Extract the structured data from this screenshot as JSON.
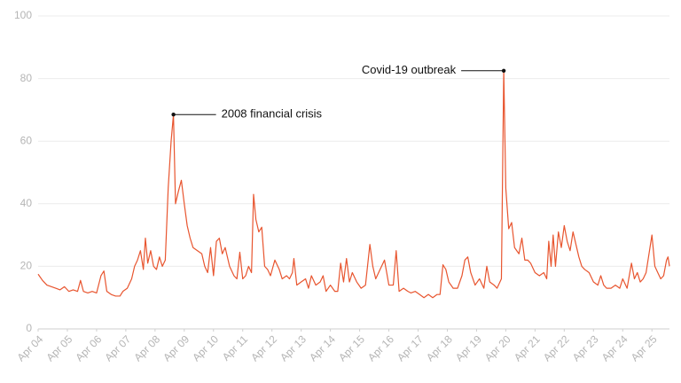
{
  "chart_data": {
    "type": "line",
    "color": "#e8552f",
    "grid": true,
    "xlim": [
      2004.25,
      2025.85
    ],
    "ylim": [
      0,
      100
    ],
    "yticks": [
      0,
      20,
      40,
      60,
      80,
      100
    ],
    "xticks": [
      {
        "value": 2004.25,
        "label": "Apr 04"
      },
      {
        "value": 2005.25,
        "label": "Apr 05"
      },
      {
        "value": 2006.25,
        "label": "Apr 06"
      },
      {
        "value": 2007.25,
        "label": "Apr 07"
      },
      {
        "value": 2008.25,
        "label": "Apr 08"
      },
      {
        "value": 2009.25,
        "label": "Apr 09"
      },
      {
        "value": 2010.25,
        "label": "Apr 10"
      },
      {
        "value": 2011.25,
        "label": "Apr 11"
      },
      {
        "value": 2012.25,
        "label": "Apr 12"
      },
      {
        "value": 2013.25,
        "label": "Apr 13"
      },
      {
        "value": 2014.25,
        "label": "Apr 14"
      },
      {
        "value": 2015.25,
        "label": "Apr 15"
      },
      {
        "value": 2016.25,
        "label": "Apr 16"
      },
      {
        "value": 2017.25,
        "label": "Apr 17"
      },
      {
        "value": 2018.25,
        "label": "Apr 18"
      },
      {
        "value": 2019.25,
        "label": "Apr 19"
      },
      {
        "value": 2020.25,
        "label": "Apr 20"
      },
      {
        "value": 2021.25,
        "label": "Apr 21"
      },
      {
        "value": 2022.25,
        "label": "Apr 22"
      },
      {
        "value": 2023.25,
        "label": "Apr 23"
      },
      {
        "value": 2024.25,
        "label": "Apr 24"
      },
      {
        "value": 2025.25,
        "label": "Apr 25"
      }
    ],
    "x": [
      2004.25,
      2004.4,
      2004.55,
      2004.7,
      2004.85,
      2005.0,
      2005.15,
      2005.3,
      2005.45,
      2005.6,
      2005.7,
      2005.8,
      2005.95,
      2006.1,
      2006.25,
      2006.4,
      2006.5,
      2006.6,
      2006.75,
      2006.9,
      2007.05,
      2007.15,
      2007.3,
      2007.45,
      2007.55,
      2007.65,
      2007.75,
      2007.85,
      2007.92,
      2008.0,
      2008.1,
      2008.2,
      2008.3,
      2008.4,
      2008.5,
      2008.6,
      2008.7,
      2008.8,
      2008.88,
      2008.95,
      2009.05,
      2009.15,
      2009.25,
      2009.35,
      2009.45,
      2009.55,
      2009.7,
      2009.85,
      2009.95,
      2010.05,
      2010.15,
      2010.25,
      2010.35,
      2010.45,
      2010.55,
      2010.65,
      2010.8,
      2010.95,
      2011.05,
      2011.15,
      2011.25,
      2011.35,
      2011.45,
      2011.55,
      2011.62,
      2011.7,
      2011.8,
      2011.9,
      2012.0,
      2012.1,
      2012.2,
      2012.35,
      2012.5,
      2012.6,
      2012.75,
      2012.85,
      2012.95,
      2013.0,
      2013.1,
      2013.25,
      2013.4,
      2013.5,
      2013.6,
      2013.75,
      2013.9,
      2014.0,
      2014.1,
      2014.25,
      2014.4,
      2014.5,
      2014.6,
      2014.7,
      2014.8,
      2014.9,
      2015.0,
      2015.15,
      2015.3,
      2015.45,
      2015.6,
      2015.7,
      2015.8,
      2015.95,
      2016.1,
      2016.25,
      2016.4,
      2016.5,
      2016.6,
      2016.75,
      2016.9,
      2017.0,
      2017.15,
      2017.3,
      2017.45,
      2017.6,
      2017.75,
      2017.9,
      2018.0,
      2018.1,
      2018.2,
      2018.3,
      2018.45,
      2018.6,
      2018.75,
      2018.85,
      2018.95,
      2019.05,
      2019.2,
      2019.35,
      2019.5,
      2019.6,
      2019.7,
      2019.85,
      2019.95,
      2020.1,
      2020.18,
      2020.25,
      2020.35,
      2020.45,
      2020.55,
      2020.7,
      2020.8,
      2020.9,
      2021.0,
      2021.1,
      2021.25,
      2021.4,
      2021.55,
      2021.65,
      2021.72,
      2021.8,
      2021.87,
      2021.95,
      2022.05,
      2022.15,
      2022.25,
      2022.35,
      2022.45,
      2022.55,
      2022.65,
      2022.75,
      2022.85,
      2022.95,
      2023.1,
      2023.25,
      2023.4,
      2023.5,
      2023.6,
      2023.7,
      2023.85,
      2024.0,
      2024.15,
      2024.25,
      2024.4,
      2024.55,
      2024.65,
      2024.75,
      2024.85,
      2024.95,
      2025.05,
      2025.25,
      2025.35,
      2025.45,
      2025.55,
      2025.65,
      2025.75,
      2025.8,
      2025.85
    ],
    "values": [
      17.5,
      15.5,
      14,
      13.5,
      13,
      12.5,
      13.5,
      12,
      12.5,
      12,
      15.5,
      12,
      11.5,
      12,
      11.5,
      17,
      18.5,
      12,
      11,
      10.5,
      10.5,
      12,
      13,
      16,
      20,
      22,
      25,
      19,
      29,
      21,
      25,
      20,
      19,
      23,
      20,
      22,
      45,
      60,
      68.5,
      40,
      44,
      47.5,
      40,
      33,
      29,
      26,
      25,
      24,
      20,
      18,
      26,
      17,
      28,
      29,
      24,
      26,
      20,
      17,
      16,
      24.5,
      16,
      17,
      20,
      18,
      43,
      35,
      31,
      32.5,
      20,
      19,
      17,
      22,
      19,
      16,
      17,
      16,
      18,
      22.5,
      14,
      15,
      16,
      13,
      17,
      14,
      15,
      17,
      12,
      14,
      12,
      12,
      21,
      15,
      22.5,
      15,
      18,
      15,
      13,
      14,
      27,
      20,
      16,
      19,
      22,
      14,
      14,
      25,
      12,
      13,
      12,
      11.5,
      12,
      11,
      10,
      11,
      10,
      11,
      11,
      20.5,
      19,
      15,
      13,
      13,
      17,
      22,
      23,
      18,
      14,
      16,
      13,
      20,
      15,
      14,
      13,
      16,
      82.5,
      45,
      32,
      34,
      26,
      24,
      29,
      22,
      22,
      21,
      18,
      17,
      18,
      16,
      28,
      20,
      30,
      20,
      31,
      26,
      33,
      28,
      25,
      31,
      27,
      23,
      20,
      19,
      18,
      15,
      14,
      17,
      14,
      13,
      13,
      14,
      13,
      16,
      13,
      21,
      16,
      18,
      15,
      16,
      18,
      30,
      20,
      18,
      16,
      17,
      22,
      23,
      20
    ],
    "annotations": [
      {
        "text": "2008 financial crisis",
        "x": 2008.88,
        "y": 68.5,
        "side": "right"
      },
      {
        "text": "Covid-19 outbreak",
        "x": 2020.18,
        "y": 82.5,
        "side": "left"
      }
    ]
  }
}
